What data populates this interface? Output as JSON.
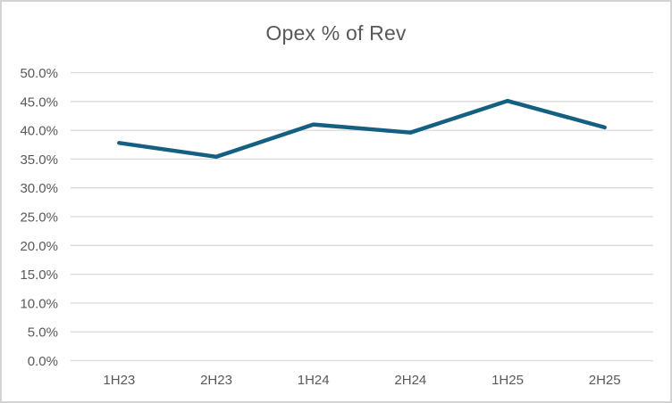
{
  "window": {
    "background_color": "#FFFFFF",
    "border_color": "#D3D3D3"
  },
  "chart_data": {
    "type": "line",
    "title": "Opex % of Rev",
    "categories": [
      "1H23",
      "2H23",
      "1H24",
      "2H24",
      "1H25",
      "2H25"
    ],
    "series": [
      {
        "name": "Opex % of Rev",
        "values": [
          37.8,
          35.4,
          41.0,
          39.6,
          45.1,
          40.5
        ]
      }
    ],
    "xlabel": "",
    "ylabel": "",
    "ylim": [
      0,
      50
    ],
    "ytick_step": 5,
    "ytick_labels": [
      "0.0%",
      "5.0%",
      "10.0%",
      "15.0%",
      "20.0%",
      "25.0%",
      "30.0%",
      "35.0%",
      "40.0%",
      "45.0%",
      "50.0%"
    ],
    "grid": true,
    "legend_position": "none",
    "line_color": "#156082",
    "gridline_color": "#D9D9D9",
    "axis_text_color": "#595959",
    "title_color": "#595959"
  }
}
